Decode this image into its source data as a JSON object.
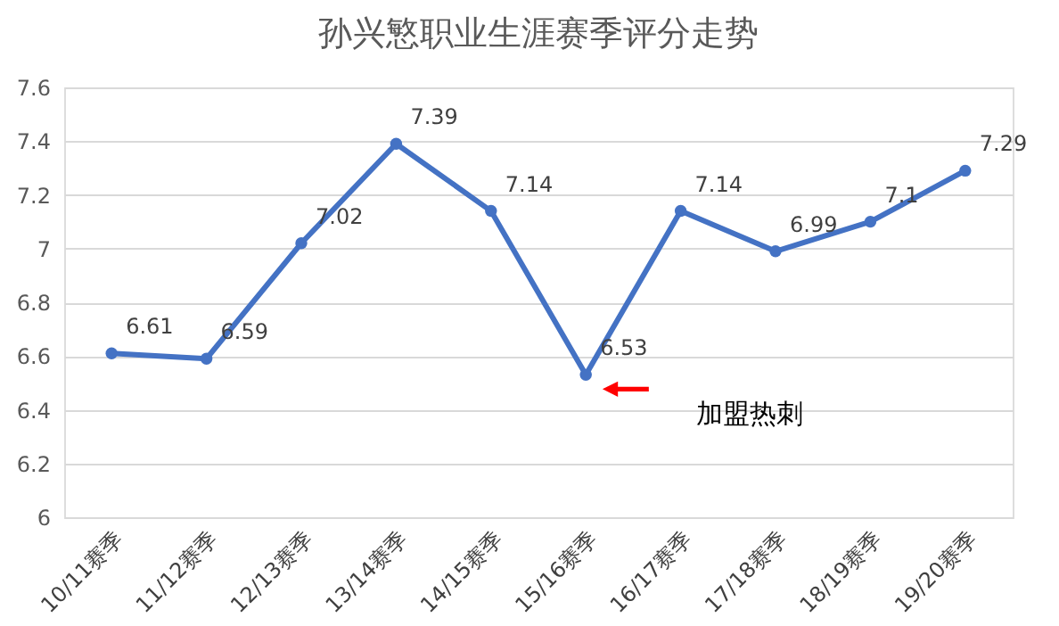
{
  "chart_data": {
    "type": "line",
    "title": "孙兴慜职业生涯赛季评分走势",
    "categories": [
      "10/11赛季",
      "11/12赛季",
      "12/13赛季",
      "13/14赛季",
      "14/15赛季",
      "15/16赛季",
      "16/17赛季",
      "17/18赛季",
      "18/19赛季",
      "19/20赛季"
    ],
    "values": [
      6.61,
      6.59,
      7.02,
      7.39,
      7.14,
      6.53,
      7.14,
      6.99,
      7.1,
      7.29
    ],
    "color": "#4472c4",
    "marker": "circle",
    "data_labels": true,
    "ylim": [
      6,
      7.6
    ],
    "yticks": [
      6,
      6.2,
      6.4,
      6.6,
      6.8,
      7,
      7.2,
      7.4,
      7.6
    ],
    "grid": "y",
    "annotations": [
      "加盟热刺"
    ]
  }
}
